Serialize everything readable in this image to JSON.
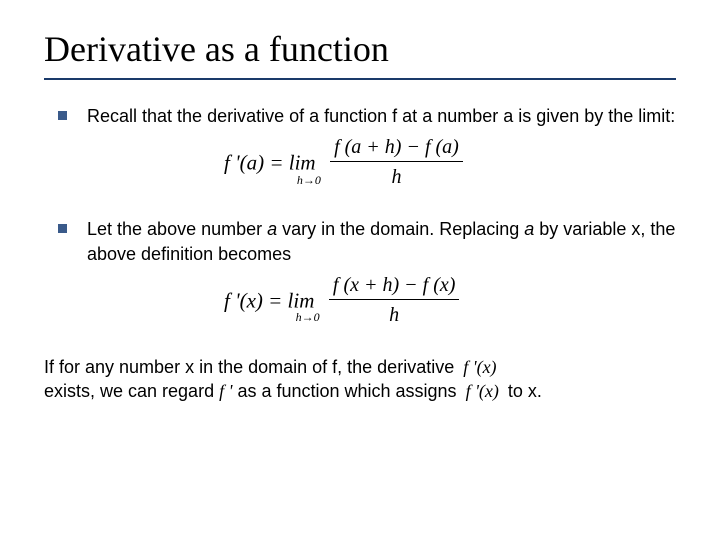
{
  "title": "Derivative as a function",
  "rule_color": "#1a3a6a",
  "bullet_color": "#3a5a8a",
  "bullets": [
    {
      "text": "Recall that the derivative of a function f at a number a is given by the limit:"
    },
    {
      "text_parts": [
        "Let the above number ",
        "a",
        " vary in the domain. Replacing ",
        "a",
        " by variable x, the above definition becomes"
      ]
    }
  ],
  "formula1": {
    "lhs": "f '(a)",
    "eq": " = lim",
    "sub": "h→0",
    "num": "f (a + h) − f (a)",
    "den": "h"
  },
  "formula2": {
    "lhs": "f '(x)",
    "eq": " = lim",
    "sub": "h→0",
    "num": "f (x + h) − f (x)",
    "den": "h"
  },
  "closing": {
    "line1_a": "If for any number x in the domain of f, the derivative ",
    "line1_math": "f '(x)",
    "line2_a": "exists, we can regard ",
    "line2_math1": "f '",
    "line2_b": " as a function which assigns ",
    "line2_math2": "f '(x)",
    "line2_c": " to x."
  }
}
